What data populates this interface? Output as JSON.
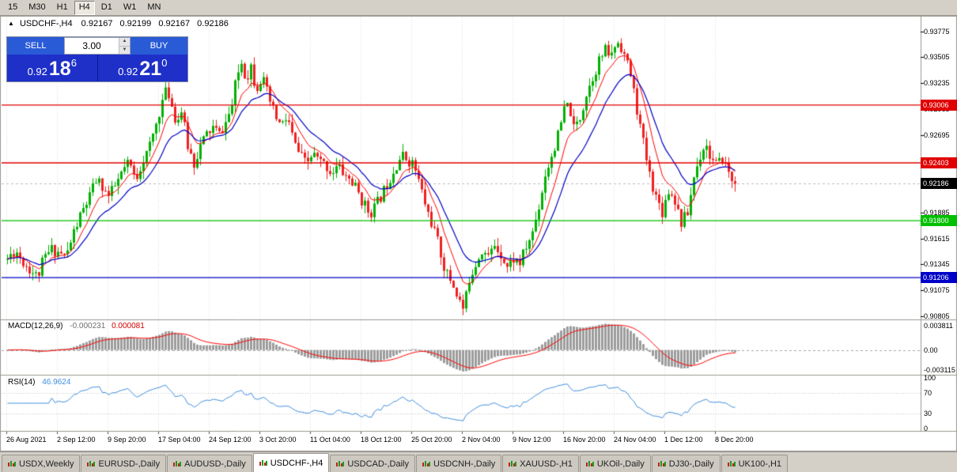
{
  "toolbar": {
    "timeframes": [
      "15",
      "M30",
      "H1",
      "H4",
      "D1",
      "W1",
      "MN"
    ],
    "active": "H4"
  },
  "chart": {
    "marker": "▲",
    "title": "USDCHF-,H4",
    "ohlc": {
      "open": "0.92167",
      "high": "0.92199",
      "low": "0.92167",
      "close": "0.92186"
    },
    "levels": [
      {
        "label": "0.93006",
        "value": 0.93006,
        "color": "#E00000"
      },
      {
        "label": "0.92403",
        "value": 0.92403,
        "color": "#E00000"
      },
      {
        "label": "0.91800",
        "value": 0.918,
        "color": "#00C000"
      },
      {
        "label": "0.91206",
        "value": 0.91206,
        "color": "#0000C8"
      }
    ],
    "current_price": {
      "label": "0.92186",
      "value": 0.92186,
      "bg": "#000000"
    }
  },
  "one_click": {
    "sell_label": "SELL",
    "buy_label": "BUY",
    "lots": "3.00",
    "spin_up": "▲",
    "spin_down": "▼",
    "sell_price": {
      "big": "0.92",
      "pips": "18",
      "pip_sup": "6"
    },
    "buy_price": {
      "big": "0.92",
      "pips": "21",
      "pip_sup": "0"
    }
  },
  "price_axis": {
    "ticks": [
      {
        "label": "0.93775",
        "value": 0.93775
      },
      {
        "label": "0.93505",
        "value": 0.93505
      },
      {
        "label": "0.93235",
        "value": 0.93235
      },
      {
        "label": "0.92965",
        "value": 0.92965
      },
      {
        "label": "0.92695",
        "value": 0.92695
      },
      {
        "label": "0.92425",
        "value": 0.92425
      },
      {
        "label": "0.92155",
        "value": 0.92155
      },
      {
        "label": "0.91885",
        "value": 0.91885
      },
      {
        "label": "0.91615",
        "value": 0.91615
      },
      {
        "label": "0.91345",
        "value": 0.91345
      },
      {
        "label": "0.91075",
        "value": 0.91075
      },
      {
        "label": "0.90805",
        "value": 0.90805
      }
    ]
  },
  "macd": {
    "name": "MACD(12,26,9)",
    "value_main": "-0.000231",
    "value_signal": "0.000081",
    "axis": [
      {
        "label": "0.003811",
        "value": 0.003811
      },
      {
        "label": "0.00",
        "value": 0
      },
      {
        "label": "-0.003115",
        "value": -0.003115
      }
    ]
  },
  "rsi": {
    "name": "RSI(14)",
    "value": "46.9624",
    "axis": [
      {
        "label": "100",
        "value": 100
      },
      {
        "label": "70",
        "value": 70
      },
      {
        "label": "30",
        "value": 30
      },
      {
        "label": "0",
        "value": 0
      }
    ],
    "levels": [
      70,
      30
    ]
  },
  "time_axis": {
    "labels": [
      "26 Aug 2021",
      "2 Sep 12:00",
      "9 Sep 20:00",
      "17 Sep 04:00",
      "24 Sep 12:00",
      "3 Oct 20:00",
      "11 Oct 04:00",
      "18 Oct 12:00",
      "25 Oct 20:00",
      "2 Nov 04:00",
      "9 Nov 12:00",
      "16 Nov 20:00",
      "24 Nov 04:00",
      "1 Dec 12:00",
      "8 Dec 20:00"
    ]
  },
  "tabs": {
    "active": "USDCHF-,H4",
    "items": [
      {
        "label": "USDX,Weekly"
      },
      {
        "label": "EURUSD-,Daily"
      },
      {
        "label": "AUDUSD-,Daily"
      },
      {
        "label": "USDCHF-,H4"
      },
      {
        "label": "USDCAD-,Daily"
      },
      {
        "label": "USDCNH-,Daily"
      },
      {
        "label": "XAUUSD-,H1"
      },
      {
        "label": "UKOil-,Daily"
      },
      {
        "label": "DJ30-,Daily"
      },
      {
        "label": "UK100-,H1"
      }
    ]
  },
  "chart_data": {
    "type": "candlestick",
    "symbol": "USDCHF-",
    "timeframe": "H4",
    "title": "USDCHF-,H4",
    "visible_range": {
      "price_min": 0.9077,
      "price_max": 0.9392,
      "time_start": "26 Aug 2021",
      "time_end": "8 Dec 20:00"
    },
    "last_close": 0.92186,
    "indicators": [
      {
        "name": "MACD(12,26,9)",
        "values": [
          -0.000231,
          8.1e-05
        ]
      },
      {
        "name": "RSI(14)",
        "values": [
          46.9624
        ]
      }
    ],
    "horizontal_levels": [
      0.93006,
      0.92403,
      0.918,
      0.91206
    ],
    "anchors": [
      [
        8,
        0.914
      ],
      [
        18,
        0.915
      ],
      [
        28,
        0.9137
      ],
      [
        38,
        0.9128
      ],
      [
        46,
        0.9121
      ],
      [
        54,
        0.914
      ],
      [
        64,
        0.915
      ],
      [
        74,
        0.9147
      ],
      [
        82,
        0.9142
      ],
      [
        92,
        0.9168
      ],
      [
        102,
        0.9188
      ],
      [
        112,
        0.9205
      ],
      [
        120,
        0.9222
      ],
      [
        128,
        0.9216
      ],
      [
        136,
        0.9205
      ],
      [
        146,
        0.9218
      ],
      [
        154,
        0.9232
      ],
      [
        162,
        0.924
      ],
      [
        170,
        0.9222
      ],
      [
        178,
        0.9242
      ],
      [
        186,
        0.9252
      ],
      [
        194,
        0.9275
      ],
      [
        202,
        0.93
      ],
      [
        210,
        0.9318
      ],
      [
        216,
        0.93
      ],
      [
        222,
        0.9282
      ],
      [
        228,
        0.9295
      ],
      [
        236,
        0.9258
      ],
      [
        244,
        0.924
      ],
      [
        252,
        0.9258
      ],
      [
        260,
        0.927
      ],
      [
        268,
        0.9277
      ],
      [
        276,
        0.927
      ],
      [
        284,
        0.9282
      ],
      [
        292,
        0.93
      ],
      [
        298,
        0.933
      ],
      [
        304,
        0.9345
      ],
      [
        310,
        0.9328
      ],
      [
        316,
        0.9342
      ],
      [
        322,
        0.9318
      ],
      [
        330,
        0.933
      ],
      [
        338,
        0.9308
      ],
      [
        346,
        0.929
      ],
      [
        354,
        0.9278
      ],
      [
        362,
        0.9288
      ],
      [
        370,
        0.9262
      ],
      [
        378,
        0.9248
      ],
      [
        386,
        0.9238
      ],
      [
        394,
        0.925
      ],
      [
        402,
        0.9242
      ],
      [
        410,
        0.9238
      ],
      [
        418,
        0.923
      ],
      [
        426,
        0.9237
      ],
      [
        434,
        0.9228
      ],
      [
        442,
        0.9222
      ],
      [
        450,
        0.9212
      ],
      [
        458,
        0.9198
      ],
      [
        466,
        0.9188
      ],
      [
        474,
        0.9196
      ],
      [
        482,
        0.9208
      ],
      [
        490,
        0.9222
      ],
      [
        498,
        0.9236
      ],
      [
        506,
        0.9248
      ],
      [
        514,
        0.9244
      ],
      [
        522,
        0.9238
      ],
      [
        530,
        0.9216
      ],
      [
        538,
        0.9192
      ],
      [
        546,
        0.9174
      ],
      [
        554,
        0.9152
      ],
      [
        562,
        0.9126
      ],
      [
        570,
        0.9116
      ],
      [
        578,
        0.91
      ],
      [
        585,
        0.9086
      ],
      [
        592,
        0.912
      ],
      [
        600,
        0.9136
      ],
      [
        608,
        0.915
      ],
      [
        616,
        0.9142
      ],
      [
        624,
        0.9155
      ],
      [
        632,
        0.9146
      ],
      [
        640,
        0.9132
      ],
      [
        648,
        0.914
      ],
      [
        656,
        0.9136
      ],
      [
        664,
        0.9152
      ],
      [
        672,
        0.9168
      ],
      [
        680,
        0.9195
      ],
      [
        688,
        0.9228
      ],
      [
        696,
        0.9248
      ],
      [
        704,
        0.9268
      ],
      [
        712,
        0.9295
      ],
      [
        718,
        0.9302
      ],
      [
        724,
        0.9275
      ],
      [
        732,
        0.9288
      ],
      [
        740,
        0.9312
      ],
      [
        748,
        0.933
      ],
      [
        756,
        0.9347
      ],
      [
        764,
        0.9357
      ],
      [
        772,
        0.9352
      ],
      [
        778,
        0.9368
      ],
      [
        784,
        0.9362
      ],
      [
        790,
        0.9348
      ],
      [
        796,
        0.9332
      ],
      [
        802,
        0.9305
      ],
      [
        808,
        0.9278
      ],
      [
        814,
        0.9252
      ],
      [
        820,
        0.9228
      ],
      [
        828,
        0.9205
      ],
      [
        836,
        0.919
      ],
      [
        844,
        0.9212
      ],
      [
        852,
        0.9202
      ],
      [
        860,
        0.9178
      ],
      [
        868,
        0.9188
      ],
      [
        876,
        0.9226
      ],
      [
        884,
        0.9248
      ],
      [
        890,
        0.9262
      ],
      [
        898,
        0.9244
      ],
      [
        906,
        0.9236
      ],
      [
        912,
        0.9246
      ],
      [
        918,
        0.9234
      ],
      [
        926,
        0.92186
      ]
    ],
    "colors": {
      "up": "#00B000",
      "down": "#F02020",
      "ma_fast": "#FF0000",
      "ma_slow": "#0000C8",
      "macd_hist": "#9C9C9C",
      "macd_signal": "#FF0000",
      "rsi": "#3E8EDE",
      "grid": "#DCDCDC",
      "chart_bg": "#FFFFFF",
      "frame": "#9C9890"
    }
  }
}
